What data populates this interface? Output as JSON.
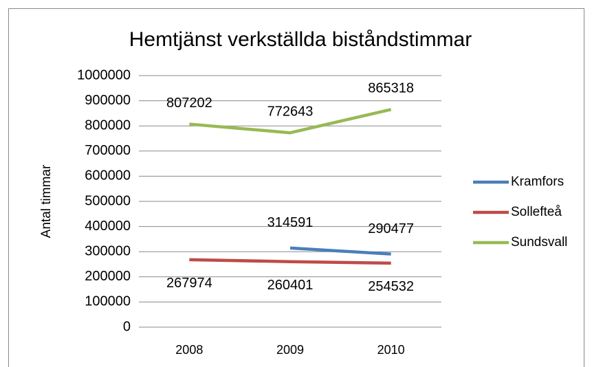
{
  "chart_data": {
    "type": "line",
    "title": "Hemtjänst verkställda biståndstimmar",
    "y_label": "Antal timmar",
    "categories": [
      "2008",
      "2009",
      "2010"
    ],
    "series": [
      {
        "name": "Kramfors",
        "color": "#4a7ebb",
        "values": [
          null,
          314591,
          290477
        ]
      },
      {
        "name": "Sollefteå",
        "color": "#be4b48",
        "values": [
          267974,
          260401,
          254532
        ]
      },
      {
        "name": "Sundsvall",
        "color": "#98b954",
        "values": [
          807202,
          772643,
          865318
        ]
      }
    ],
    "ylim": [
      0,
      1000000
    ],
    "yticks": [
      0,
      100000,
      200000,
      300000,
      400000,
      500000,
      600000,
      700000,
      800000,
      900000,
      1000000
    ],
    "grid": true,
    "legend": "right"
  }
}
